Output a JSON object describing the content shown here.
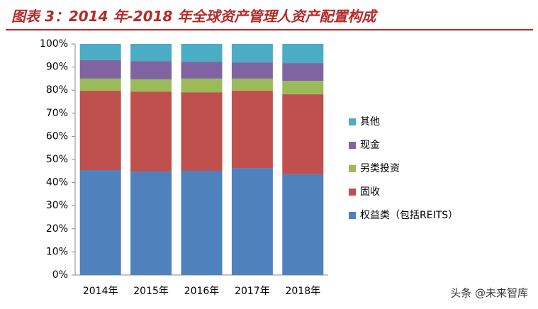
{
  "chart_data": {
    "type": "stacked_bar",
    "title": "图表 3：2014 年-2018 年全球资产管理人资产配置构成",
    "categories": [
      "2014年",
      "2015年",
      "2016年",
      "2017年",
      "2018年"
    ],
    "series": [
      {
        "name": "权益类（包括REITS）",
        "color": "#4f81bd",
        "values": [
          45.4,
          44.8,
          45.1,
          46.3,
          43.6
        ]
      },
      {
        "name": "固收",
        "color": "#c0504d",
        "values": [
          34.4,
          34.6,
          34.0,
          33.5,
          34.6
        ]
      },
      {
        "name": "另类投资",
        "color": "#9bbb59",
        "values": [
          5.2,
          5.3,
          5.9,
          5.2,
          5.8
        ]
      },
      {
        "name": "现金",
        "color": "#8064a2",
        "values": [
          8.0,
          7.9,
          7.3,
          7.0,
          7.7
        ]
      },
      {
        "name": "其他",
        "color": "#4bacc6",
        "values": [
          7.0,
          7.4,
          7.7,
          8.0,
          8.3
        ]
      }
    ],
    "ylim": [
      0,
      100
    ],
    "yticks": [
      {
        "value": 0,
        "label": "0%"
      },
      {
        "value": 10,
        "label": "10%"
      },
      {
        "value": 20,
        "label": "20%"
      },
      {
        "value": 30,
        "label": "30%"
      },
      {
        "value": 40,
        "label": "40%"
      },
      {
        "value": 50,
        "label": "50%"
      },
      {
        "value": 60,
        "label": "60%"
      },
      {
        "value": 70,
        "label": "70%"
      },
      {
        "value": 80,
        "label": "80%"
      },
      {
        "value": 90,
        "label": "90%"
      },
      {
        "value": 100,
        "label": "100%"
      }
    ],
    "legend": "right",
    "watermark": "头条 @未来智库"
  }
}
